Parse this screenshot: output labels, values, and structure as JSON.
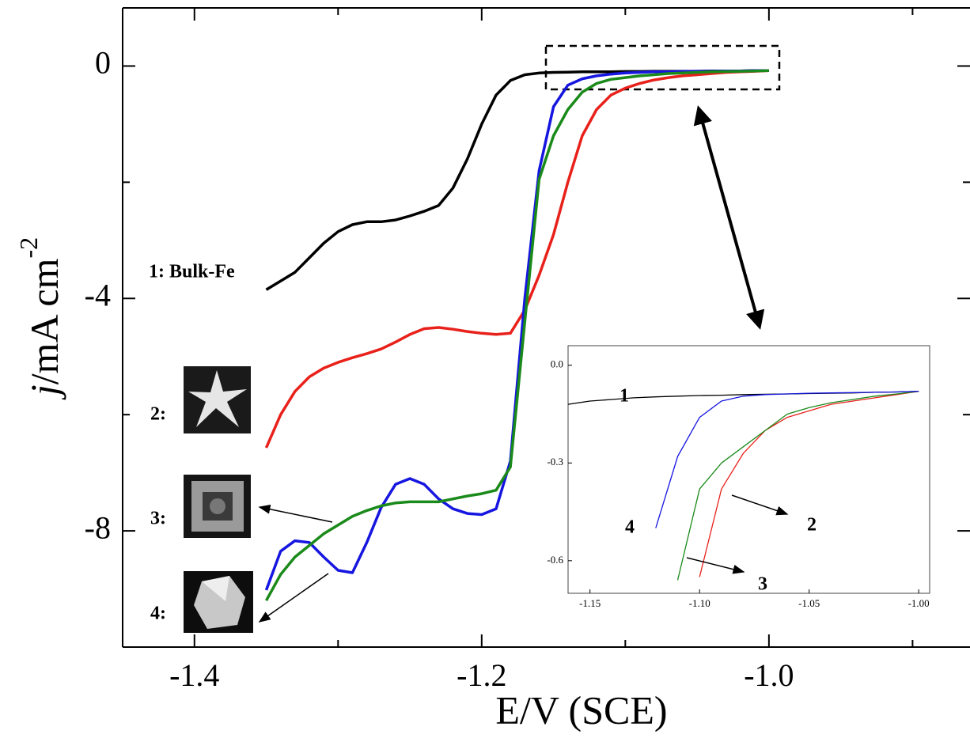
{
  "chart_data": [
    {
      "type": "line",
      "x_label": "E/V (SCE)",
      "y_label": [
        "j",
        "/mA cm",
        "-2"
      ],
      "x": [
        -1.35,
        -1.34,
        -1.33,
        -1.32,
        -1.31,
        -1.3,
        -1.29,
        -1.28,
        -1.27,
        -1.26,
        -1.25,
        -1.24,
        -1.23,
        -1.22,
        -1.21,
        -1.2,
        -1.19,
        -1.18,
        -1.17,
        -1.16,
        -1.15,
        -1.14,
        -1.13,
        -1.12,
        -1.11,
        -1.1,
        -1.09,
        -1.08,
        -1.07,
        -1.06,
        -1.05,
        -1.04,
        -1.03,
        -1.02,
        -1.01,
        -1.0
      ],
      "series": [
        {
          "name": "1: Bulk-Fe",
          "color": "#000000",
          "values": [
            -3.85,
            -3.7,
            -3.55,
            -3.3,
            -3.05,
            -2.85,
            -2.73,
            -2.68,
            -2.68,
            -2.65,
            -2.58,
            -2.5,
            -2.4,
            -2.1,
            -1.6,
            -1.0,
            -0.5,
            -0.25,
            -0.15,
            -0.12,
            -0.11,
            -0.105,
            -0.1,
            -0.1,
            -0.1,
            -0.095,
            -0.095,
            -0.09,
            -0.09,
            -0.09,
            -0.09,
            -0.085,
            -0.085,
            -0.085,
            -0.08,
            -0.08
          ]
        },
        {
          "name": "2:",
          "color": "#e8211b",
          "values": [
            -6.57,
            -6.0,
            -5.6,
            -5.35,
            -5.2,
            -5.1,
            -5.02,
            -4.95,
            -4.87,
            -4.75,
            -4.62,
            -4.52,
            -4.5,
            -4.53,
            -4.57,
            -4.6,
            -4.62,
            -4.6,
            -4.2,
            -3.6,
            -2.9,
            -2.0,
            -1.2,
            -0.75,
            -0.5,
            -0.38,
            -0.3,
            -0.24,
            -0.2,
            -0.17,
            -0.15,
            -0.13,
            -0.11,
            -0.1,
            -0.09,
            -0.08
          ]
        },
        {
          "name": "3:",
          "color": "#1a8a1a",
          "values": [
            -9.2,
            -8.75,
            -8.45,
            -8.25,
            -8.05,
            -7.9,
            -7.75,
            -7.65,
            -7.57,
            -7.52,
            -7.5,
            -7.5,
            -7.5,
            -7.45,
            -7.4,
            -7.36,
            -7.3,
            -6.9,
            -4.4,
            -1.95,
            -1.2,
            -0.75,
            -0.45,
            -0.3,
            -0.23,
            -0.2,
            -0.17,
            -0.15,
            -0.13,
            -0.12,
            -0.11,
            -0.1,
            -0.095,
            -0.09,
            -0.085,
            -0.08
          ]
        },
        {
          "name": "4:",
          "color": "#1616e0",
          "values": [
            -9.02,
            -8.35,
            -8.17,
            -8.2,
            -8.45,
            -8.68,
            -8.72,
            -8.2,
            -7.6,
            -7.2,
            -7.1,
            -7.2,
            -7.45,
            -7.62,
            -7.7,
            -7.72,
            -7.62,
            -6.8,
            -4.0,
            -1.8,
            -0.7,
            -0.33,
            -0.22,
            -0.17,
            -0.14,
            -0.12,
            -0.11,
            -0.1,
            -0.1,
            -0.095,
            -0.09,
            -0.09,
            -0.085,
            -0.085,
            -0.08,
            -0.08
          ]
        }
      ],
      "xlim": [
        -1.45,
        -0.86
      ],
      "ylim": [
        -10,
        1
      ],
      "xticks": [
        -1.4,
        -1.2,
        {
          "value": -1,
          "label": "-1.0"
        }
      ],
      "yticks": [
        0,
        -4,
        -8
      ],
      "xminorticks": [
        -1.3,
        -1.1,
        -0.9
      ],
      "yminorticks": [
        -2,
        -6
      ]
    },
    {
      "type": "line",
      "x": [
        -1.16,
        -1.15,
        -1.14,
        -1.13,
        -1.12,
        -1.11,
        -1.1,
        -1.09,
        -1.08,
        -1.07,
        -1.06,
        -1.05,
        -1.04,
        -1.03,
        -1.02,
        -1.01,
        -1.0
      ],
      "series": [
        {
          "name": "1",
          "color": "#000000",
          "values": [
            -0.12,
            -0.11,
            -0.105,
            -0.1,
            -0.097,
            -0.095,
            -0.093,
            -0.092,
            -0.09,
            -0.089,
            -0.088,
            -0.087,
            -0.086,
            -0.085,
            -0.083,
            -0.082,
            -0.08
          ]
        },
        {
          "name": "2",
          "color": "#e8211b",
          "values": [
            null,
            null,
            null,
            null,
            null,
            null,
            -0.65,
            -0.38,
            -0.27,
            -0.2,
            -0.16,
            -0.14,
            -0.12,
            -0.11,
            -0.1,
            -0.09,
            -0.08
          ]
        },
        {
          "name": "3",
          "color": "#1a8a1a",
          "values": [
            null,
            null,
            null,
            null,
            null,
            -0.66,
            -0.38,
            -0.3,
            -0.25,
            -0.2,
            -0.15,
            -0.13,
            -0.115,
            -0.105,
            -0.095,
            -0.088,
            -0.08
          ]
        },
        {
          "name": "4",
          "color": "#1616e0",
          "values": [
            null,
            null,
            null,
            null,
            -0.5,
            -0.28,
            -0.16,
            -0.11,
            -0.095,
            -0.09,
            -0.088,
            -0.086,
            -0.085,
            -0.084,
            -0.083,
            -0.082,
            -0.08
          ]
        }
      ],
      "xlim": [
        -1.16,
        -0.995
      ],
      "ylim": [
        -0.7,
        0.06
      ],
      "xticks": [
        -1.15,
        {
          "value": -1.1,
          "label": "-1.10"
        },
        {
          "value": -1.05,
          "label": "-1.05"
        },
        {
          "value": -1,
          "label": "-1.00"
        }
      ],
      "yticks": [
        {
          "value": 0,
          "label": "0.0"
        },
        -0.3,
        -0.6
      ]
    }
  ]
}
